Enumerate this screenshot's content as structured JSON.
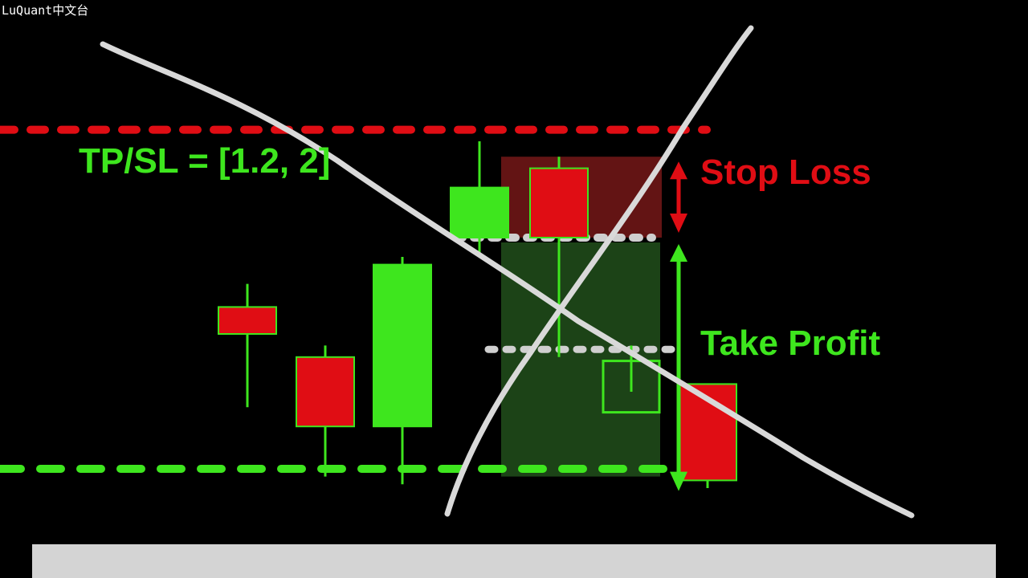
{
  "watermark": "LuQuant中文台",
  "labels": {
    "ratio": "TP/SL = [1.2, 2]",
    "stop_loss": "Stop Loss",
    "take_profit": "Take Profit"
  },
  "colors": {
    "bull": "#3ee61e",
    "bear": "#e00d14",
    "sl_zone": "#6e1616",
    "tp_zone": "#1f4a1a",
    "entry_line": "#cfcfcf",
    "strike": "#d9d9d9"
  },
  "chart_data": {
    "type": "candlestick",
    "title": "",
    "xlabel": "",
    "ylabel": "",
    "ylim": [
      0,
      100
    ],
    "resistance_level": 93,
    "support_level": 5,
    "entry_level": 65,
    "target_level": 36,
    "stop_loss_zone": [
      65,
      86
    ],
    "take_profit_zone": [
      3,
      65
    ],
    "candles": [
      {
        "open": 47,
        "high": 53,
        "low": 21,
        "close": 40
      },
      {
        "open": 34,
        "high": 37,
        "low": 3,
        "close": 16
      },
      {
        "open": 16,
        "high": 60,
        "low": 1,
        "close": 58
      },
      {
        "open": 65,
        "high": 90,
        "low": 60,
        "close": 78
      },
      {
        "open": 83,
        "high": 86,
        "low": 34,
        "close": 65
      },
      {
        "open": 33,
        "high": 37,
        "low": 25,
        "close": 33
      },
      {
        "open": 27,
        "high": 27,
        "low": 0,
        "close": 2
      }
    ]
  }
}
